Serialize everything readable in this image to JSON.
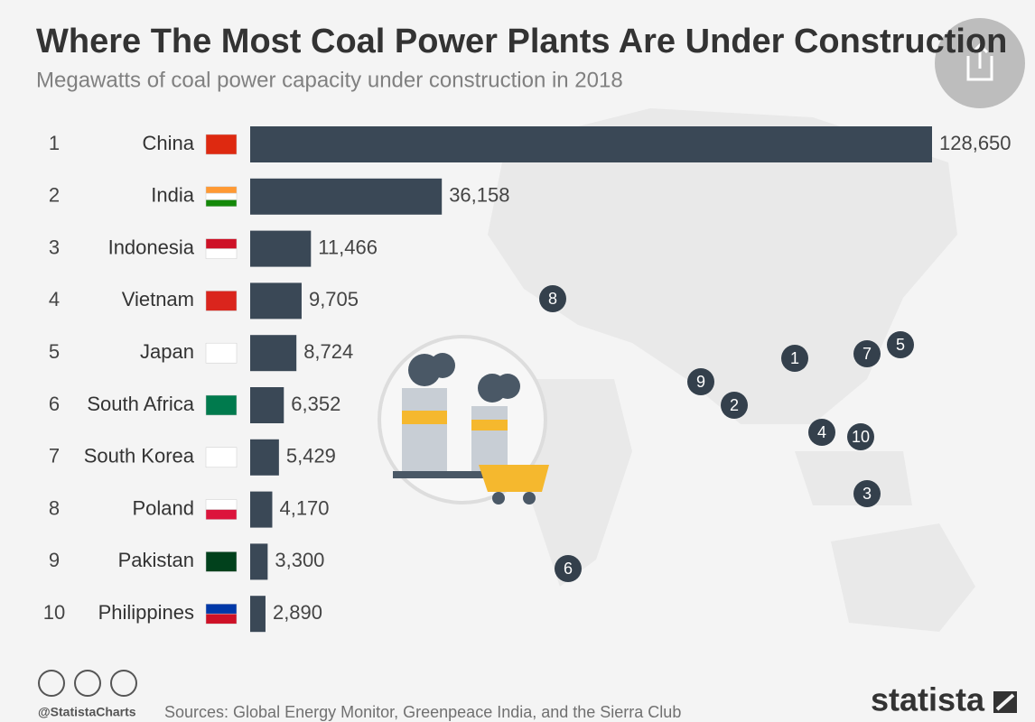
{
  "chart_data": {
    "type": "bar",
    "orientation": "horizontal",
    "title": "Where The Most Coal Power Plants Are Under Construction",
    "subtitle": "Megawatts of coal power capacity under construction in 2018",
    "ranks": [
      "1",
      "2",
      "3",
      "4",
      "5",
      "6",
      "7",
      "8",
      "9",
      "10"
    ],
    "categories": [
      "China",
      "India",
      "Indonesia",
      "Vietnam",
      "Japan",
      "South Africa",
      "South Korea",
      "Poland",
      "Pakistan",
      "Philippines"
    ],
    "values": [
      128650,
      36158,
      11466,
      9705,
      8724,
      6352,
      5429,
      4170,
      3300,
      2890
    ],
    "value_labels": [
      "128,650",
      "36,158",
      "11,466",
      "9,705",
      "8,724",
      "6,352",
      "5,429",
      "4,170",
      "3,300",
      "2,890"
    ],
    "color": "#3a4856",
    "xlim": [
      0,
      128650
    ],
    "credit": "@StatistaCharts",
    "source": "Sources: Global Energy Monitor, Greenpeace India, and the Sierra Club",
    "brand": "statista"
  }
}
